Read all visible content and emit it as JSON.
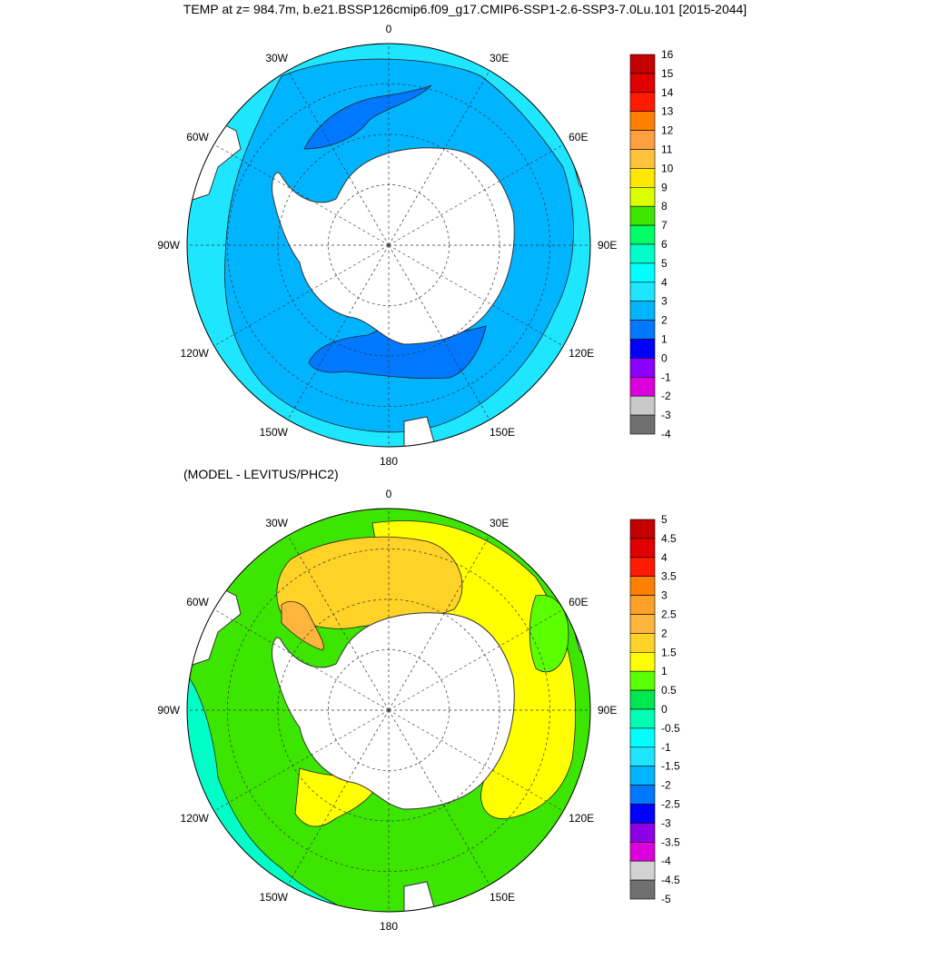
{
  "title": "TEMP at z= 984.7m, b.e21.BSSP126cmip6.f09_g17.CMIP6-SSP1-2.6-SSP3-7.0Lu.101 [2015-2044]",
  "diff_title": "(MODEL - LEVITUS/PHC2)",
  "lon_labels": [
    "0",
    "30E",
    "60E",
    "90E",
    "120E",
    "150E",
    "180",
    "150W",
    "120W",
    "90W",
    "60W",
    "30W"
  ],
  "colors": {
    "land": "#ffffff",
    "coast": "#333333",
    "grid": "#333333"
  },
  "top_map": {
    "colorbar_labels": [
      "16",
      "15",
      "14",
      "13",
      "12",
      "11",
      "10",
      "9",
      "8",
      "7",
      "6",
      "5",
      "4",
      "3",
      "2",
      "1",
      "0",
      "-1",
      "-2",
      "-3",
      "-4"
    ],
    "colorbar_colors": [
      "#c40000",
      "#e00000",
      "#ff1a00",
      "#ff8000",
      "#ffa040",
      "#ffc23c",
      "#ffe800",
      "#dcff00",
      "#3ce600",
      "#00ff64",
      "#00ffc8",
      "#00ffff",
      "#1ee6ff",
      "#00b4ff",
      "#0078ff",
      "#0000ff",
      "#8c00ff",
      "#dc00dc",
      "#c8c8c8",
      "#707070"
    ],
    "field_colors": {
      "outer": "#1ee6ff",
      "main": "#00b4ff",
      "cold": "#0078ff"
    }
  },
  "bottom_map": {
    "colorbar_labels": [
      "5",
      "4.5",
      "4",
      "3.5",
      "3",
      "2.5",
      "2",
      "1.5",
      "1",
      "0.5",
      "0",
      "-0.5",
      "-1",
      "-1.5",
      "-2",
      "-2.5",
      "-3",
      "-3.5",
      "-4",
      "-4.5",
      "-5"
    ],
    "colorbar_colors": [
      "#c40000",
      "#e00000",
      "#ff1a00",
      "#ff8000",
      "#ffa028",
      "#ffb43c",
      "#ffd228",
      "#ffff00",
      "#5aff00",
      "#00e650",
      "#00ffb4",
      "#00ffff",
      "#1ee6ff",
      "#00b4ff",
      "#0078ff",
      "#0000ff",
      "#8c00e6",
      "#dc00dc",
      "#d2d2d2",
      "#707070"
    ],
    "field_colors": {
      "cyan": "#00ffc8",
      "green": "#3ce600",
      "brightgreen": "#5aff00",
      "yellow": "#ffff00",
      "gold": "#ffd228",
      "orange": "#ffb43c"
    }
  }
}
